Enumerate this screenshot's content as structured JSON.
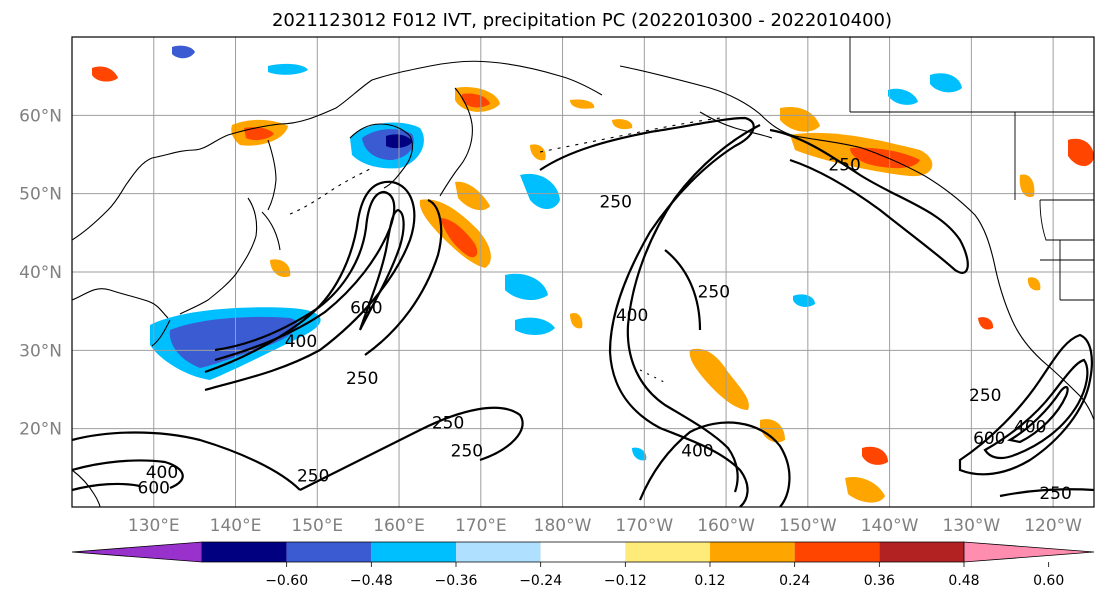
{
  "title": "2021123012 F012 IVT, precipitation PC (2022010300 - 2022010400)",
  "map": {
    "lon_range": [
      120,
      245
    ],
    "lat_range": [
      10,
      70
    ],
    "lat_ticks": [
      {
        "lat": 20,
        "label": "20°N"
      },
      {
        "lat": 30,
        "label": "30°N"
      },
      {
        "lat": 40,
        "label": "40°N"
      },
      {
        "lat": 50,
        "label": "50°N"
      },
      {
        "lat": 60,
        "label": "60°N"
      }
    ],
    "lon_ticks": [
      {
        "lon": 130,
        "label": "130°E"
      },
      {
        "lon": 140,
        "label": "140°E"
      },
      {
        "lon": 150,
        "label": "150°E"
      },
      {
        "lon": 160,
        "label": "160°E"
      },
      {
        "lon": 170,
        "label": "170°E"
      },
      {
        "lon": 180,
        "label": "180°W"
      },
      {
        "lon": 190,
        "label": "170°W"
      },
      {
        "lon": 200,
        "label": "160°W"
      },
      {
        "lon": 210,
        "label": "150°W"
      },
      {
        "lon": 220,
        "label": "140°W"
      },
      {
        "lon": 230,
        "label": "130°W"
      },
      {
        "lon": 240,
        "label": "120°W"
      }
    ],
    "ivt_contour_labels": [
      {
        "text": "400",
        "lon": 148,
        "lat": 31.2
      },
      {
        "text": "600",
        "lon": 156,
        "lat": 35.5
      },
      {
        "text": "250",
        "lon": 155.5,
        "lat": 26.5
      },
      {
        "text": "250",
        "lon": 166,
        "lat": 20.8
      },
      {
        "text": "250",
        "lon": 168.3,
        "lat": 17.2
      },
      {
        "text": "250",
        "lon": 149.5,
        "lat": 14
      },
      {
        "text": "400",
        "lon": 131,
        "lat": 14.5
      },
      {
        "text": "600",
        "lon": 130,
        "lat": 12.5
      },
      {
        "text": "250",
        "lon": 186.5,
        "lat": 49
      },
      {
        "text": "400",
        "lon": 188.5,
        "lat": 34.5
      },
      {
        "text": "250",
        "lon": 198.5,
        "lat": 37.5
      },
      {
        "text": "400",
        "lon": 196.5,
        "lat": 17.2
      },
      {
        "text": "250",
        "lon": 214.5,
        "lat": 53.7
      },
      {
        "text": "250",
        "lon": 231.7,
        "lat": 24.3
      },
      {
        "text": "600",
        "lon": 232.2,
        "lat": 18.8
      },
      {
        "text": "400",
        "lon": 237.2,
        "lat": 20.3
      },
      {
        "text": "250",
        "lon": 240.3,
        "lat": 11.8
      }
    ]
  },
  "colorbar": {
    "colors": [
      "#9932CC",
      "#000080",
      "#3A5BD2",
      "#00BFFF",
      "#B0E0FF",
      "#FFFFFF",
      "#FFEB7A",
      "#FFA500",
      "#FF4500",
      "#B22222",
      "#FF8DB0"
    ],
    "tick_labels": [
      "−0.60",
      "−0.48",
      "−0.36",
      "−0.24",
      "−0.12",
      "0.12",
      "0.24",
      "0.36",
      "0.48",
      "0.60"
    ]
  }
}
